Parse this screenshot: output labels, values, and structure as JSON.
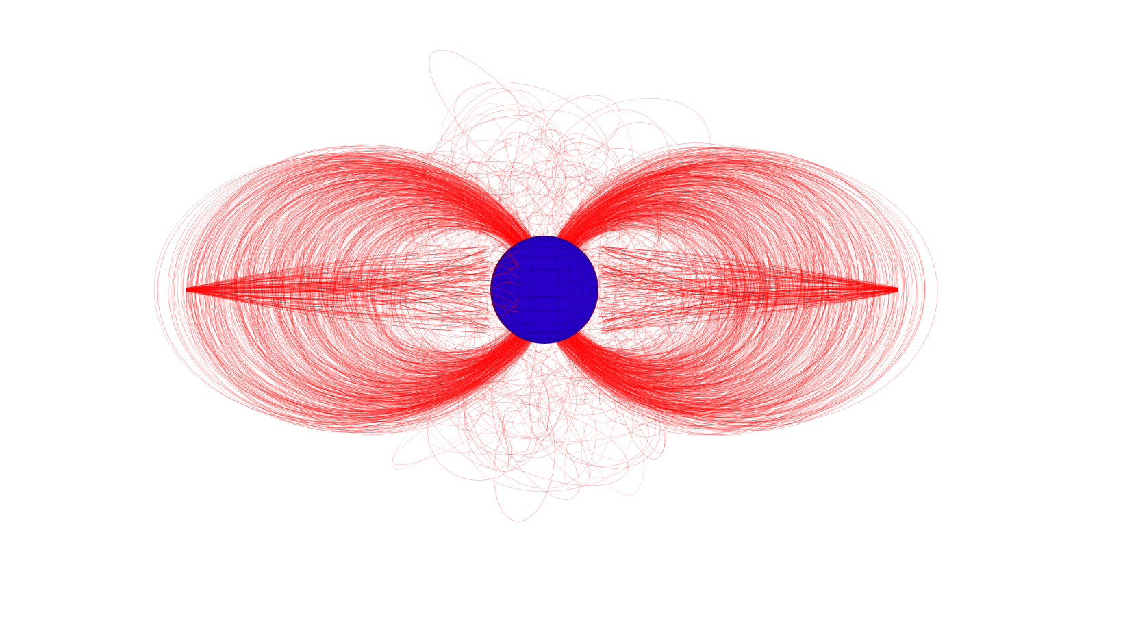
{
  "colors": {
    "background": "#ffffff",
    "field_lines": "#ff0000",
    "sphere_fill": "#2a00c8",
    "sphere_grid": "#1a00a0",
    "sphere_edge": "#5a0050"
  }
}
